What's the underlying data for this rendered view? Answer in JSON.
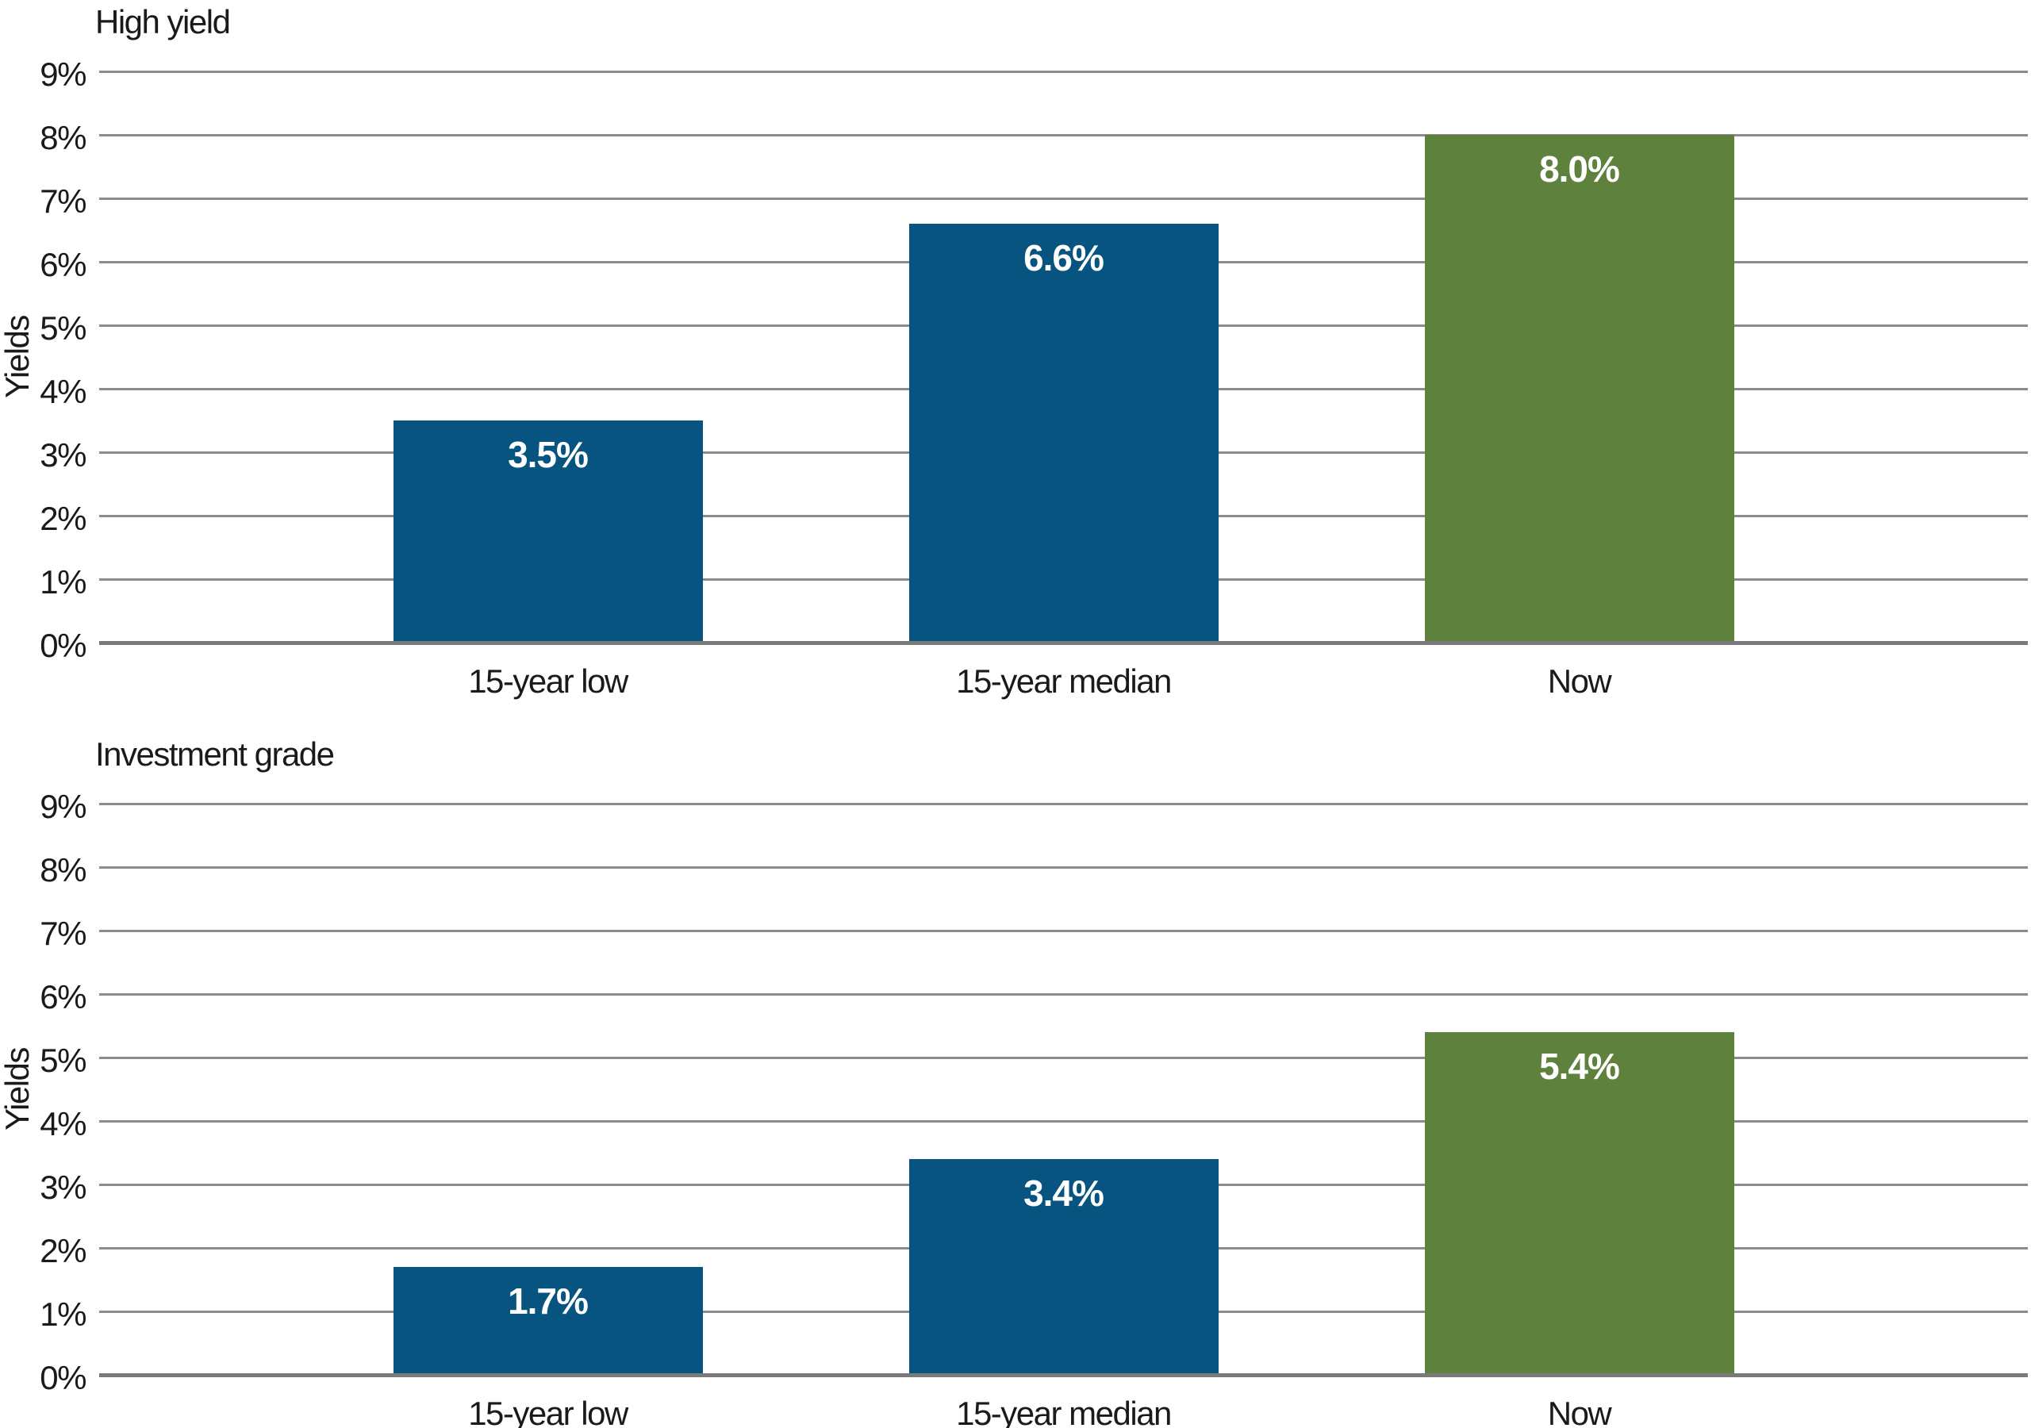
{
  "page": {
    "background": "#ffffff"
  },
  "colors": {
    "blue": "#085480",
    "green": "#5e813d",
    "gridline": "#8c8c8c",
    "axis_line": "#7a7a7a",
    "text": "#1a1a1a",
    "value_text": "#ffffff"
  },
  "chart_data": [
    {
      "type": "bar",
      "title": "High yield",
      "ylabel": "Yields",
      "xlabel": "",
      "categories": [
        "15-year low",
        "15-year median",
        "Now"
      ],
      "values": [
        3.5,
        6.6,
        8.0
      ],
      "value_labels": [
        "3.5%",
        "6.6%",
        "8.0%"
      ],
      "bar_colors": [
        "blue",
        "blue",
        "green"
      ],
      "ylim": [
        0,
        9
      ],
      "ytick_step": 1,
      "ytick_labels": [
        "0%",
        "1%",
        "2%",
        "3%",
        "4%",
        "5%",
        "6%",
        "7%",
        "8%",
        "9%"
      ],
      "grid": true,
      "legend": "none"
    },
    {
      "type": "bar",
      "title": "Investment grade",
      "ylabel": "Yields",
      "xlabel": "",
      "categories": [
        "15-year low",
        "15-year median",
        "Now"
      ],
      "values": [
        1.7,
        3.4,
        5.4
      ],
      "value_labels": [
        "1.7%",
        "3.4%",
        "5.4%"
      ],
      "bar_colors": [
        "blue",
        "blue",
        "green"
      ],
      "ylim": [
        0,
        9
      ],
      "ytick_step": 1,
      "ytick_labels": [
        "0%",
        "1%",
        "2%",
        "3%",
        "4%",
        "5%",
        "6%",
        "7%",
        "8%",
        "9%"
      ],
      "grid": true,
      "legend": "none"
    }
  ]
}
